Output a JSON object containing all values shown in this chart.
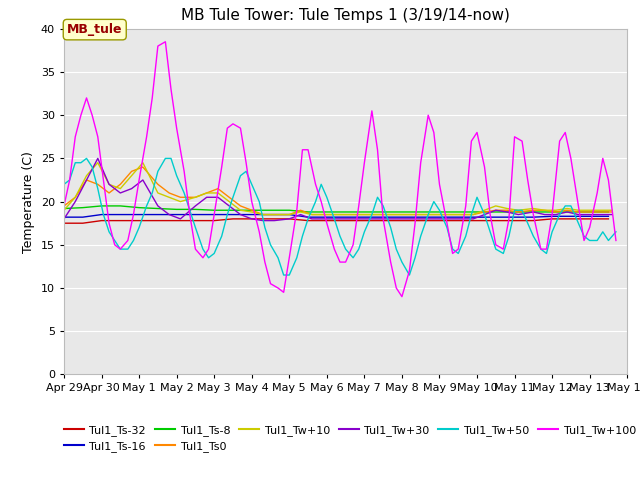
{
  "title": "MB Tule Tower: Tule Temps 1 (3/19/14-now)",
  "ylabel": "Temperature (C)",
  "ylim": [
    0,
    40
  ],
  "yticks": [
    0,
    5,
    10,
    15,
    20,
    25,
    30,
    35,
    40
  ],
  "xtick_labels": [
    "Apr 29",
    "Apr 30",
    "May 1",
    "May 2",
    "May 3",
    "May 4",
    "May 5",
    "May 6",
    "May 7",
    "May 8",
    "May 9",
    "May 10",
    "May 11",
    "May 12",
    "May 13",
    "May 14"
  ],
  "bg_color": "#e8e8e8",
  "fig_bg": "#ffffff",
  "series": [
    {
      "label": "Tul1_Ts-32",
      "color": "#cc0000",
      "lw": 1.0,
      "x": [
        0,
        0.5,
        1,
        1.5,
        2,
        2.5,
        3,
        3.5,
        4,
        4.5,
        5,
        5.5,
        6,
        6.5,
        7,
        7.5,
        8,
        8.5,
        9,
        9.5,
        10,
        10.5,
        11,
        11.5,
        12,
        12.5,
        13,
        13.5,
        14,
        14.5
      ],
      "y": [
        17.5,
        17.5,
        17.8,
        17.8,
        17.8,
        17.8,
        17.8,
        17.8,
        17.8,
        18.0,
        18.0,
        18.0,
        18.0,
        17.8,
        17.8,
        17.8,
        17.8,
        17.8,
        17.8,
        17.8,
        17.8,
        17.8,
        17.8,
        17.8,
        17.8,
        17.8,
        18.0,
        18.0,
        18.0,
        18.0
      ]
    },
    {
      "label": "Tul1_Ts-16",
      "color": "#0000cc",
      "lw": 1.0,
      "x": [
        0,
        0.5,
        1,
        1.5,
        2,
        2.5,
        3,
        3.5,
        4,
        4.5,
        5,
        5.5,
        6,
        6.5,
        7,
        7.5,
        8,
        8.5,
        9,
        9.5,
        10,
        10.5,
        11,
        11.5,
        12,
        12.5,
        13,
        13.5,
        14,
        14.5
      ],
      "y": [
        18.2,
        18.2,
        18.5,
        18.5,
        18.5,
        18.5,
        18.5,
        18.5,
        18.5,
        18.5,
        18.5,
        18.5,
        18.5,
        18.2,
        18.2,
        18.2,
        18.2,
        18.2,
        18.2,
        18.2,
        18.2,
        18.2,
        18.2,
        18.2,
        18.2,
        18.2,
        18.3,
        18.3,
        18.3,
        18.3
      ]
    },
    {
      "label": "Tul1_Ts-8",
      "color": "#00cc00",
      "lw": 1.0,
      "x": [
        0,
        0.5,
        1,
        1.5,
        2,
        2.5,
        3,
        3.5,
        4,
        4.5,
        5,
        5.5,
        6,
        6.5,
        7,
        7.5,
        8,
        8.5,
        9,
        9.5,
        10,
        10.5,
        11,
        11.5,
        12,
        12.5,
        13,
        13.5,
        14,
        14.5
      ],
      "y": [
        19.2,
        19.3,
        19.5,
        19.5,
        19.3,
        19.2,
        19.1,
        19.1,
        19.0,
        19.0,
        19.0,
        19.0,
        19.0,
        18.8,
        18.8,
        18.8,
        18.8,
        18.8,
        18.8,
        18.8,
        18.8,
        18.8,
        18.8,
        18.8,
        18.8,
        18.8,
        18.8,
        18.8,
        18.8,
        18.8
      ]
    },
    {
      "label": "Tul1_Ts0",
      "color": "#ff8800",
      "lw": 1.0,
      "x": [
        0,
        0.3,
        0.6,
        0.9,
        1.2,
        1.5,
        1.8,
        2.1,
        2.5,
        2.8,
        3.1,
        3.5,
        3.8,
        4.1,
        4.4,
        4.7,
        5.0,
        5.3,
        5.6,
        6.0,
        6.3,
        6.6,
        6.9,
        7.2,
        7.5,
        7.8,
        8.1,
        8.4,
        8.8,
        9.1,
        9.4,
        9.7,
        10.0,
        10.3,
        10.6,
        10.9,
        11.2,
        11.5,
        11.8,
        12.1,
        12.5,
        12.8,
        13.1,
        13.4,
        13.7,
        14.0,
        14.3,
        14.6
      ],
      "y": [
        19.5,
        20.5,
        22.5,
        22.0,
        21.0,
        22.0,
        23.5,
        24.0,
        22.0,
        21.0,
        20.5,
        20.5,
        21.0,
        21.5,
        20.5,
        19.5,
        19.0,
        18.5,
        18.5,
        18.5,
        19.0,
        18.5,
        18.5,
        18.5,
        18.5,
        18.5,
        18.5,
        18.5,
        18.5,
        18.5,
        18.5,
        18.5,
        18.5,
        18.5,
        18.5,
        18.5,
        18.8,
        19.0,
        19.0,
        18.8,
        19.0,
        19.0,
        18.8,
        19.0,
        18.8,
        18.8,
        18.8,
        18.8
      ]
    },
    {
      "label": "Tul1_Tw+10",
      "color": "#cccc00",
      "lw": 1.0,
      "x": [
        0,
        0.3,
        0.6,
        0.9,
        1.2,
        1.5,
        1.8,
        2.1,
        2.5,
        2.8,
        3.1,
        3.5,
        3.8,
        4.1,
        4.4,
        4.7,
        5.0,
        5.3,
        5.6,
        6.0,
        6.3,
        6.6,
        6.9,
        7.2,
        7.5,
        7.8,
        8.1,
        8.4,
        8.8,
        9.1,
        9.4,
        9.7,
        10.0,
        10.3,
        10.6,
        10.9,
        11.2,
        11.5,
        11.8,
        12.1,
        12.5,
        12.8,
        13.1,
        13.4,
        13.7,
        14.0,
        14.3,
        14.6
      ],
      "y": [
        19.0,
        20.5,
        23.0,
        24.5,
        22.0,
        21.5,
        23.0,
        24.5,
        21.0,
        20.5,
        20.0,
        20.5,
        21.0,
        21.0,
        20.0,
        19.0,
        18.8,
        18.5,
        18.5,
        18.5,
        18.8,
        18.5,
        18.5,
        18.5,
        18.5,
        18.5,
        18.5,
        18.5,
        18.5,
        18.5,
        18.5,
        18.5,
        18.5,
        18.5,
        18.5,
        18.5,
        19.0,
        19.5,
        19.2,
        19.0,
        19.2,
        19.0,
        19.0,
        19.2,
        19.0,
        19.0,
        19.0,
        19.0
      ]
    },
    {
      "label": "Tul1_Tw+30",
      "color": "#8800cc",
      "lw": 1.0,
      "x": [
        0,
        0.3,
        0.6,
        0.9,
        1.2,
        1.5,
        1.8,
        2.1,
        2.5,
        2.8,
        3.1,
        3.5,
        3.8,
        4.1,
        4.4,
        4.7,
        5.0,
        5.3,
        5.6,
        6.0,
        6.3,
        6.6,
        6.9,
        7.2,
        7.5,
        7.8,
        8.1,
        8.4,
        8.8,
        9.1,
        9.4,
        9.7,
        10.0,
        10.3,
        10.6,
        10.9,
        11.2,
        11.5,
        11.8,
        12.1,
        12.5,
        12.8,
        13.1,
        13.4,
        13.7,
        14.0,
        14.3,
        14.6
      ],
      "y": [
        18.0,
        20.0,
        22.5,
        25.0,
        22.0,
        21.0,
        21.5,
        22.5,
        19.5,
        18.5,
        18.0,
        19.5,
        20.5,
        20.5,
        19.5,
        18.5,
        18.0,
        17.8,
        17.8,
        18.0,
        18.5,
        18.0,
        18.0,
        18.0,
        18.0,
        18.0,
        18.0,
        18.0,
        18.0,
        18.0,
        18.0,
        18.0,
        18.0,
        18.0,
        18.0,
        18.0,
        18.5,
        19.0,
        18.8,
        18.5,
        18.8,
        18.5,
        18.5,
        18.8,
        18.5,
        18.5,
        18.5,
        18.5
      ]
    },
    {
      "label": "Tul1_Tw+50",
      "color": "#00cccc",
      "lw": 1.0,
      "x": [
        0,
        0.15,
        0.3,
        0.45,
        0.6,
        0.75,
        0.9,
        1.05,
        1.2,
        1.35,
        1.5,
        1.7,
        1.85,
        2.0,
        2.2,
        2.35,
        2.5,
        2.7,
        2.85,
        3.0,
        3.2,
        3.35,
        3.5,
        3.7,
        3.85,
        4.0,
        4.2,
        4.35,
        4.5,
        4.7,
        4.85,
        5.0,
        5.2,
        5.35,
        5.5,
        5.7,
        5.85,
        6.0,
        6.2,
        6.35,
        6.5,
        6.7,
        6.85,
        7.0,
        7.2,
        7.35,
        7.5,
        7.7,
        7.85,
        8.0,
        8.2,
        8.35,
        8.5,
        8.7,
        8.85,
        9.0,
        9.2,
        9.35,
        9.5,
        9.7,
        9.85,
        10.0,
        10.2,
        10.35,
        10.5,
        10.7,
        10.85,
        11.0,
        11.2,
        11.35,
        11.5,
        11.7,
        11.85,
        12.0,
        12.2,
        12.35,
        12.5,
        12.7,
        12.85,
        13.0,
        13.2,
        13.35,
        13.5,
        13.7,
        13.85,
        14.0,
        14.2,
        14.35,
        14.5,
        14.7
      ],
      "y": [
        22.0,
        22.5,
        24.5,
        24.5,
        25.0,
        24.0,
        21.5,
        18.5,
        16.5,
        15.5,
        14.5,
        14.5,
        15.5,
        17.0,
        19.5,
        21.0,
        23.5,
        25.0,
        25.0,
        23.0,
        21.0,
        19.0,
        17.0,
        14.5,
        13.5,
        14.0,
        16.0,
        18.5,
        20.5,
        23.0,
        23.5,
        22.0,
        20.0,
        17.0,
        15.0,
        13.5,
        11.5,
        11.5,
        13.5,
        16.0,
        18.0,
        20.0,
        22.0,
        20.5,
        18.0,
        16.0,
        14.5,
        13.5,
        14.5,
        16.5,
        18.5,
        20.5,
        19.5,
        17.0,
        14.5,
        13.0,
        11.5,
        13.5,
        16.0,
        18.5,
        20.0,
        19.0,
        17.0,
        14.5,
        14.0,
        16.0,
        18.5,
        20.5,
        18.5,
        16.5,
        14.5,
        14.0,
        16.0,
        19.0,
        19.0,
        17.5,
        16.0,
        14.5,
        14.0,
        16.5,
        18.5,
        19.5,
        19.5,
        17.5,
        16.0,
        15.5,
        15.5,
        16.5,
        15.5,
        16.5
      ]
    },
    {
      "label": "Tul1_Tw+100",
      "color": "#ff00ff",
      "lw": 1.0,
      "x": [
        0,
        0.15,
        0.3,
        0.45,
        0.6,
        0.75,
        0.9,
        1.05,
        1.2,
        1.35,
        1.5,
        1.7,
        1.85,
        2.0,
        2.2,
        2.35,
        2.5,
        2.7,
        2.85,
        3.0,
        3.2,
        3.35,
        3.5,
        3.7,
        3.85,
        4.0,
        4.2,
        4.35,
        4.5,
        4.7,
        4.85,
        5.0,
        5.2,
        5.35,
        5.5,
        5.7,
        5.85,
        6.0,
        6.2,
        6.35,
        6.5,
        6.7,
        6.85,
        7.0,
        7.2,
        7.35,
        7.5,
        7.7,
        7.85,
        8.0,
        8.2,
        8.35,
        8.5,
        8.7,
        8.85,
        9.0,
        9.2,
        9.35,
        9.5,
        9.7,
        9.85,
        10.0,
        10.2,
        10.35,
        10.5,
        10.7,
        10.85,
        11.0,
        11.2,
        11.35,
        11.5,
        11.7,
        11.85,
        12.0,
        12.2,
        12.35,
        12.5,
        12.7,
        12.85,
        13.0,
        13.2,
        13.35,
        13.5,
        13.7,
        13.85,
        14.0,
        14.2,
        14.35,
        14.5,
        14.7
      ],
      "y": [
        19.5,
        22.5,
        27.5,
        30.0,
        32.0,
        30.0,
        27.5,
        22.5,
        17.5,
        15.0,
        14.5,
        15.5,
        18.5,
        22.5,
        27.5,
        32.0,
        38.0,
        38.5,
        33.0,
        28.5,
        23.5,
        18.5,
        14.5,
        13.5,
        14.5,
        18.5,
        24.0,
        28.5,
        29.0,
        28.5,
        24.5,
        20.0,
        16.5,
        13.0,
        10.5,
        10.0,
        9.5,
        13.5,
        19.0,
        26.0,
        26.0,
        22.0,
        20.0,
        17.5,
        14.5,
        13.0,
        13.0,
        15.0,
        19.5,
        24.5,
        30.5,
        26.0,
        18.0,
        13.0,
        10.0,
        9.0,
        12.0,
        17.5,
        24.5,
        30.0,
        28.0,
        22.0,
        17.5,
        14.0,
        14.5,
        19.5,
        27.0,
        28.0,
        24.0,
        18.5,
        15.0,
        14.5,
        18.0,
        27.5,
        27.0,
        22.5,
        18.5,
        14.5,
        14.5,
        18.5,
        27.0,
        28.0,
        25.0,
        19.5,
        15.5,
        17.0,
        21.0,
        25.0,
        22.5,
        15.5
      ]
    }
  ],
  "annotation_label": "MB_tule",
  "title_fontsize": 11,
  "axis_label_fontsize": 9,
  "tick_fontsize": 8,
  "legend_fontsize": 8,
  "legend_row1": [
    "Tul1_Ts-32",
    "Tul1_Ts-16",
    "Tul1_Ts-8",
    "Tul1_Ts0",
    "Tul1_Tw+10",
    "Tul1_Tw+30"
  ],
  "legend_row2": [
    "Tul1_Tw+50",
    "Tul1_Tw+100"
  ]
}
